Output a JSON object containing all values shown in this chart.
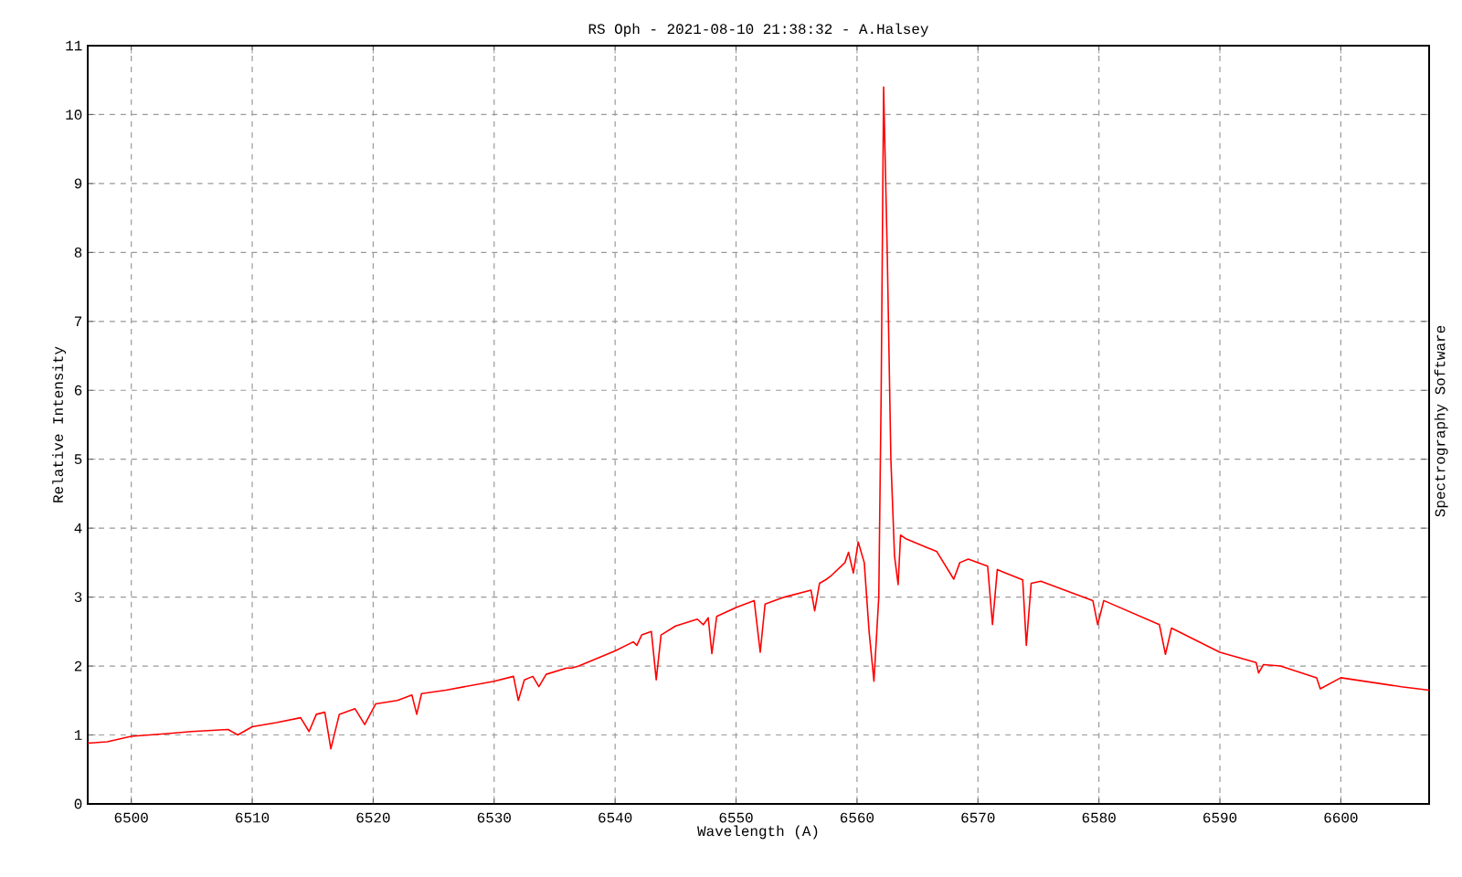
{
  "chart_data": {
    "type": "line",
    "title": "RS Oph - 2021-08-10 21:38:32 - A.Halsey",
    "xlabel": "Wavelength (A)",
    "ylabel": "Relative Intensity",
    "annotations": [
      "Spectrography Software"
    ],
    "x": [
      6496.4,
      6498,
      6500,
      6503,
      6505,
      6508,
      6508.8,
      6510,
      6512,
      6514,
      6514.7,
      6515.3,
      6516,
      6516.5,
      6517.2,
      6518.5,
      6519.3,
      6520.2,
      6522,
      6523.2,
      6523.6,
      6524,
      6526,
      6530,
      6531.6,
      6532,
      6532.5,
      6533.2,
      6533.7,
      6534.3,
      6536,
      6536.4,
      6537,
      6540,
      6541.5,
      6541.8,
      6542.2,
      6543,
      6543.4,
      6543.8,
      6545,
      6546.8,
      6547.3,
      6547.7,
      6548,
      6548.4,
      6550,
      6551.5,
      6552,
      6552.4,
      6554,
      6556.2,
      6556.5,
      6556.9,
      6557.4,
      6557.8,
      6559,
      6559.3,
      6559.7,
      6560.1,
      6560.6,
      6561,
      6561.4,
      6561.8,
      6562,
      6562.2,
      6562.5,
      6562.8,
      6563.1,
      6563.4,
      6563.6,
      6564,
      6566.6,
      6568,
      6568.5,
      6569.2,
      6570.8,
      6571.2,
      6571.6,
      6572,
      6573.7,
      6574,
      6574.4,
      6575.2,
      6579.5,
      6579.9,
      6580.4,
      6585,
      6585.5,
      6586,
      6590,
      6593,
      6593.2,
      6593.6,
      6595,
      6598,
      6598.3,
      6600,
      6605,
      6607.3
    ],
    "series": [
      {
        "color": "#ff0000",
        "values": [
          0.88,
          0.9,
          0.98,
          1.02,
          1.05,
          1.08,
          1.0,
          1.12,
          1.18,
          1.25,
          1.05,
          1.3,
          1.33,
          0.8,
          1.3,
          1.38,
          1.15,
          1.45,
          1.5,
          1.58,
          1.3,
          1.6,
          1.65,
          1.78,
          1.85,
          1.5,
          1.8,
          1.85,
          1.7,
          1.88,
          1.97,
          1.97,
          2.0,
          2.22,
          2.35,
          2.3,
          2.45,
          2.5,
          1.8,
          2.45,
          2.58,
          2.68,
          2.6,
          2.7,
          2.18,
          2.72,
          2.85,
          2.95,
          2.2,
          2.9,
          3.0,
          3.1,
          2.8,
          3.2,
          3.25,
          3.3,
          3.5,
          3.65,
          3.35,
          3.8,
          3.5,
          2.5,
          1.78,
          3.0,
          6.0,
          10.4,
          8.0,
          5.0,
          3.6,
          3.18,
          3.9,
          3.85,
          3.66,
          3.26,
          3.5,
          3.55,
          3.45,
          2.6,
          3.4,
          3.37,
          3.25,
          2.3,
          3.2,
          3.23,
          2.95,
          2.6,
          2.95,
          2.6,
          2.17,
          2.55,
          2.2,
          2.05,
          1.9,
          2.02,
          2.0,
          1.83,
          1.67,
          1.83,
          1.7,
          1.65
        ]
      }
    ],
    "xlim": [
      6496.4,
      6607.3
    ],
    "ylim": [
      0,
      11
    ],
    "xticks": [
      6500,
      6510,
      6520,
      6530,
      6540,
      6550,
      6560,
      6570,
      6580,
      6590,
      6600
    ],
    "yticks": [
      0,
      1,
      2,
      3,
      4,
      5,
      6,
      7,
      8,
      9,
      10,
      11
    ],
    "grid": true,
    "marker": "none",
    "line_style": "solid"
  }
}
